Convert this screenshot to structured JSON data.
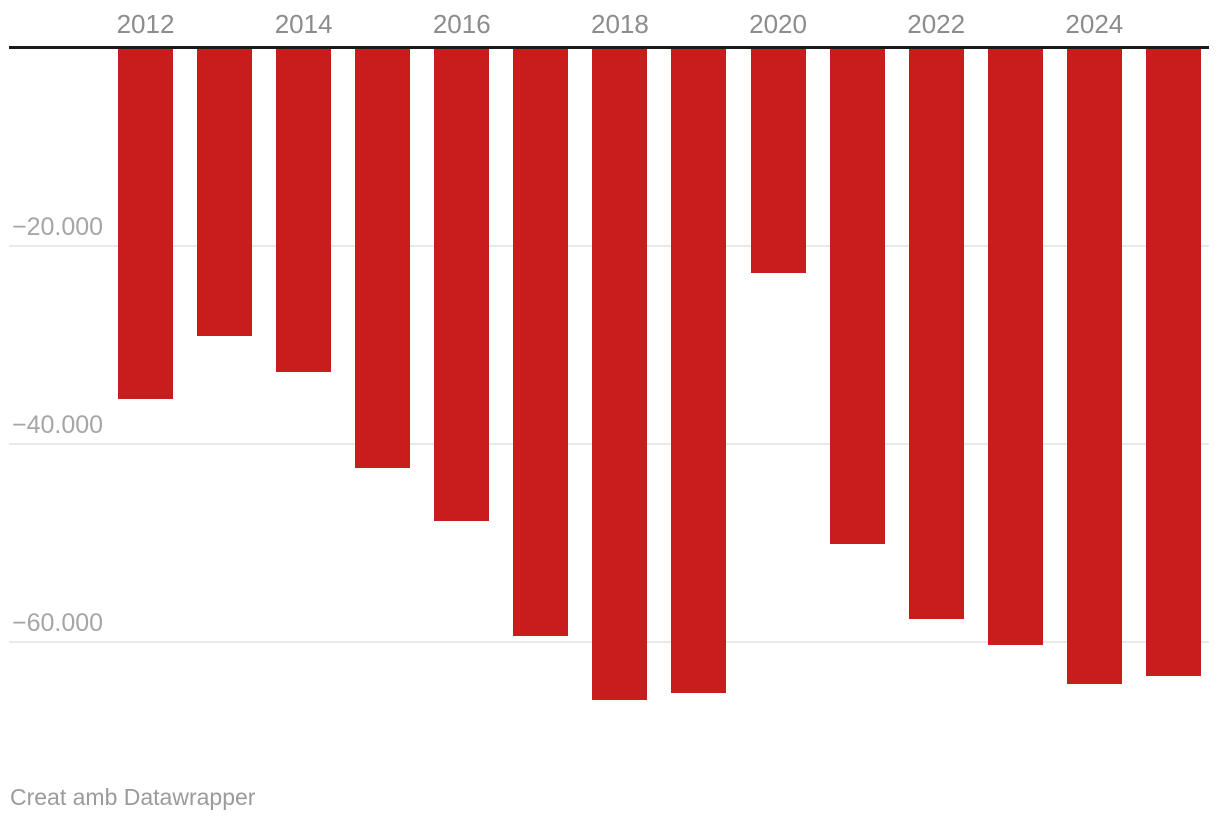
{
  "chart_data": {
    "type": "bar",
    "title": "",
    "xlabel": "",
    "ylabel": "",
    "categories": [
      2012,
      2013,
      2014,
      2015,
      2016,
      2017,
      2018,
      2019,
      2020,
      2021,
      2022,
      2023,
      2024,
      2025
    ],
    "values": [
      -35500,
      -29100,
      -32700,
      -42400,
      -47800,
      -59400,
      -65800,
      -65100,
      -22800,
      -50100,
      -57700,
      -60300,
      -64200,
      -63400
    ],
    "bar_color": "#c71e1d",
    "x_tick_labels": [
      "2012",
      "2014",
      "2016",
      "2018",
      "2020",
      "2022",
      "2024"
    ],
    "y_ticks": [
      {
        "value": -20000,
        "label": "−20.000"
      },
      {
        "value": -40000,
        "label": "−40.000"
      },
      {
        "value": -60000,
        "label": "−60.000"
      }
    ],
    "ylim": [
      -70000,
      0
    ],
    "grid": "horizontal",
    "legend": "none",
    "axis_position": "top",
    "number_format": "thousands-dot-negative",
    "colors": {
      "bar": "#c71e1d",
      "axis_line": "#1a1a1c",
      "gridline": "#e9e9e9",
      "x_tick_text": "#8c8c8c",
      "y_tick_text": "#a6a6a6",
      "footer_text": "#9b9b9b",
      "background": "#ffffff"
    }
  },
  "footer": {
    "text": "Creat amb Datawrapper"
  }
}
